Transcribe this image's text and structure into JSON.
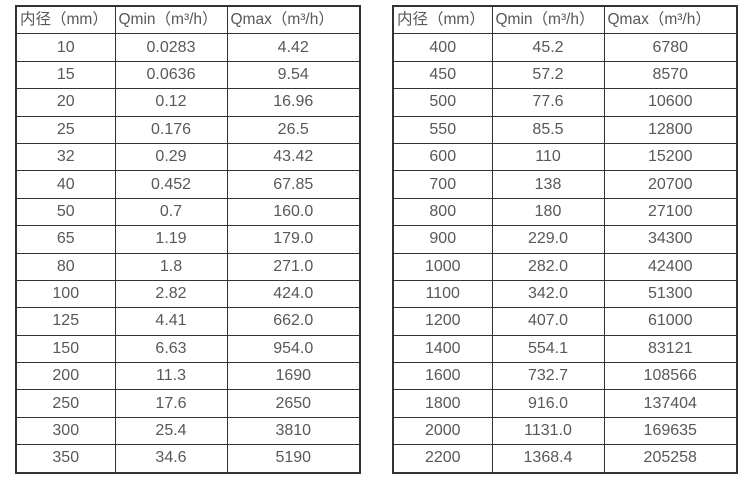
{
  "colors": {
    "border": "#333333",
    "text": "#585858",
    "bg": "#ffffff"
  },
  "chart_data": [
    {
      "type": "table",
      "title": "",
      "columns": [
        "内径（mm）",
        "Qmin（m³/h）",
        "Qmax（m³/h）"
      ],
      "rows": [
        [
          "10",
          "0.0283",
          "4.42"
        ],
        [
          "15",
          "0.0636",
          "9.54"
        ],
        [
          "20",
          "0.12",
          "16.96"
        ],
        [
          "25",
          "0.176",
          "26.5"
        ],
        [
          "32",
          "0.29",
          "43.42"
        ],
        [
          "40",
          "0.452",
          "67.85"
        ],
        [
          "50",
          "0.7",
          "160.0"
        ],
        [
          "65",
          "1.19",
          "179.0"
        ],
        [
          "80",
          "1.8",
          "271.0"
        ],
        [
          "100",
          "2.82",
          "424.0"
        ],
        [
          "125",
          "4.41",
          "662.0"
        ],
        [
          "150",
          "6.63",
          "954.0"
        ],
        [
          "200",
          "11.3",
          "1690"
        ],
        [
          "250",
          "17.6",
          "2650"
        ],
        [
          "300",
          "25.4",
          "3810"
        ],
        [
          "350",
          "34.6",
          "5190"
        ]
      ]
    },
    {
      "type": "table",
      "title": "",
      "columns": [
        "内径（mm）",
        "Qmin（m³/h）",
        "Qmax（m³/h）"
      ],
      "rows": [
        [
          "400",
          "45.2",
          "6780"
        ],
        [
          "450",
          "57.2",
          "8570"
        ],
        [
          "500",
          "77.6",
          "10600"
        ],
        [
          "550",
          "85.5",
          "12800"
        ],
        [
          "600",
          "110",
          "15200"
        ],
        [
          "700",
          "138",
          "20700"
        ],
        [
          "800",
          "180",
          "27100"
        ],
        [
          "900",
          "229.0",
          "34300"
        ],
        [
          "1000",
          "282.0",
          "42400"
        ],
        [
          "1100",
          "342.0",
          "51300"
        ],
        [
          "1200",
          "407.0",
          "61000"
        ],
        [
          "1400",
          "554.1",
          "83121"
        ],
        [
          "1600",
          "732.7",
          "108566"
        ],
        [
          "1800",
          "916.0",
          "137404"
        ],
        [
          "2000",
          "1131.0",
          "169635"
        ],
        [
          "2200",
          "1368.4",
          "205258"
        ]
      ]
    }
  ]
}
